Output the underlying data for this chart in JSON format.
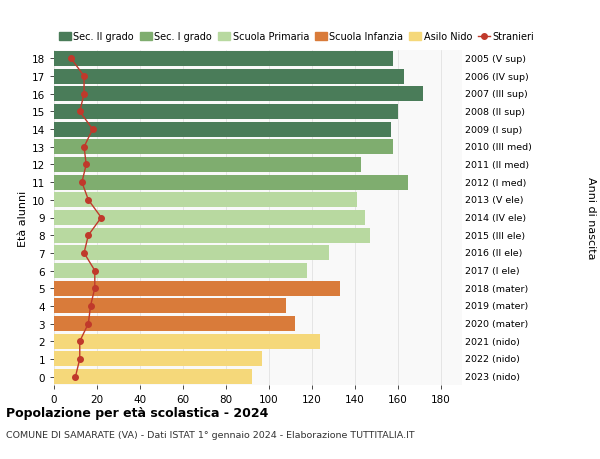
{
  "ages": [
    18,
    17,
    16,
    15,
    14,
    13,
    12,
    11,
    10,
    9,
    8,
    7,
    6,
    5,
    4,
    3,
    2,
    1,
    0
  ],
  "years": [
    "2005 (V sup)",
    "2006 (IV sup)",
    "2007 (III sup)",
    "2008 (II sup)",
    "2009 (I sup)",
    "2010 (III med)",
    "2011 (II med)",
    "2012 (I med)",
    "2013 (V ele)",
    "2014 (IV ele)",
    "2015 (III ele)",
    "2016 (II ele)",
    "2017 (I ele)",
    "2018 (mater)",
    "2019 (mater)",
    "2020 (mater)",
    "2021 (nido)",
    "2022 (nido)",
    "2023 (nido)"
  ],
  "bar_values": [
    158,
    163,
    172,
    160,
    157,
    158,
    143,
    165,
    141,
    145,
    147,
    128,
    118,
    133,
    108,
    112,
    124,
    97,
    92
  ],
  "stranieri": [
    8,
    14,
    14,
    12,
    18,
    14,
    15,
    13,
    16,
    22,
    16,
    14,
    19,
    19,
    17,
    16,
    12,
    12,
    10
  ],
  "color_map": [
    "#4a7c59",
    "#4a7c59",
    "#4a7c59",
    "#4a7c59",
    "#4a7c59",
    "#7fad6f",
    "#7fad6f",
    "#7fad6f",
    "#b8d9a0",
    "#b8d9a0",
    "#b8d9a0",
    "#b8d9a0",
    "#b8d9a0",
    "#d97b3a",
    "#d97b3a",
    "#d97b3a",
    "#f5d87a",
    "#f5d87a",
    "#f5d87a"
  ],
  "legend_labels": [
    "Sec. II grado",
    "Sec. I grado",
    "Scuola Primaria",
    "Scuola Infanzia",
    "Asilo Nido",
    "Stranieri"
  ],
  "legend_colors": [
    "#4a7c59",
    "#7fad6f",
    "#b8d9a0",
    "#d97b3a",
    "#f5d87a",
    "#c0392b"
  ],
  "stranieri_color": "#c0392b",
  "title": "Popolazione per età scolastica - 2024",
  "subtitle": "COMUNE DI SAMARATE (VA) - Dati ISTAT 1° gennaio 2024 - Elaborazione TUTTITALIA.IT",
  "ylabel_left": "Età alunni",
  "ylabel_right": "Anni di nascita",
  "xticks": [
    0,
    20,
    40,
    60,
    80,
    100,
    120,
    140,
    160,
    180
  ],
  "bg_color": "#ffffff",
  "plot_bg_color": "#f9f9f9",
  "grid_color": "#dddddd"
}
